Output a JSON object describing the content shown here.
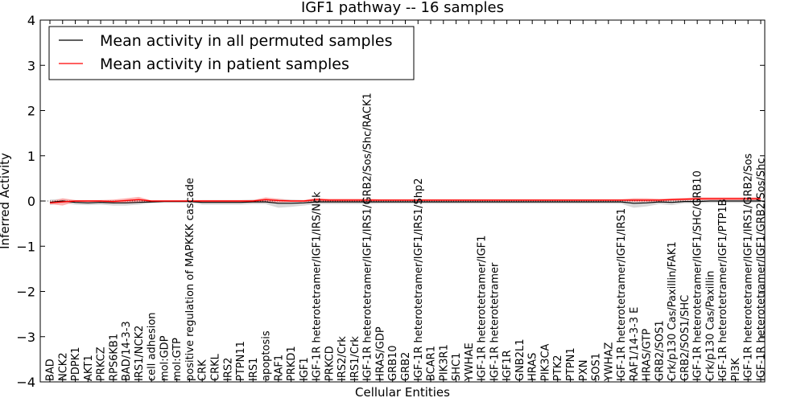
{
  "chart_data": {
    "type": "line",
    "title": "IGF1 pathway -- 16 samples",
    "xlabel": "Cellular Entities",
    "ylabel": "Inferred Activity",
    "ylim": [
      -4,
      4
    ],
    "yticks": [
      -4,
      -3,
      -2,
      -1,
      0,
      1,
      2,
      3,
      4
    ],
    "ytick_labels": [
      "−4",
      "−3",
      "−2",
      "−1",
      "0",
      "1",
      "2",
      "3",
      "4"
    ],
    "legend_position": "top-left",
    "colors": {
      "permuted": "#000000",
      "patient": "#ff0000",
      "permuted_band": "#c8c8c8",
      "patient_band": "#ff9a9a",
      "zero_line": "#555555"
    },
    "categories": [
      "BAD",
      "NCK2",
      "PDPK1",
      "AKT1",
      "PRKCZ",
      "RPS6KB1",
      "BAD/14-3-3",
      "IRS1/NCK2",
      "cell adhesion",
      "mol:GDP",
      "mol:GTP",
      "positive regulation of MAPKKK cascade",
      "CRK",
      "CRKL",
      "IRS2",
      "PTPN11",
      "IRS1",
      "apoptosis",
      "RAF1",
      "PRKD1",
      "IGF1",
      "IGF-1R heterotetramer/IGF1/IRS/Nck",
      "PRKCD",
      "IRS2/Crk",
      "IRS1/Crk",
      "IGF-1R heterotetramer/IGF1/IRS1/GRB2/Sos/Shc/RACK1",
      "HRAS/GDP",
      "GRB10",
      "GRB2",
      "IGF-1R heterotetramer/IGF1/IRS1/Shp2",
      "BCAR1",
      "PIK3R1",
      "SHC1",
      "YWHAE",
      "IGF-1R heterotetramer/IGF1",
      "IGF-1R heterotetramer",
      "IGF1R",
      "GNB2L1",
      "HRAS",
      "PIK3CA",
      "PTK2",
      "PTPN1",
      "PXN",
      "SOS1",
      "YWHAZ",
      "IGF-1R heterotetramer/IGF1/IRS1",
      "RAF1/14-3-3 E",
      "HRAS/GTP",
      "GRB2/SOS1",
      "Crk/p130 Cas/Paxillin/FAK1",
      "GRB2/SOS1/SHC",
      "IGF-1R heterotetramer/IGF1/SHC/GRB10",
      "Crk/p130 Cas/Paxillin",
      "IGF-1R heterotetramer/IGF1/PTP1B",
      "PI3K",
      "IGF-1R heterotetramer/IGF1/IRS1/GRB2/Sos",
      "IGF-1R heterotetramer/IGF1/GRB2/Sos/Shc"
    ],
    "series": [
      {
        "name": "Mean activity in all permuted samples",
        "values": [
          -0.03,
          0.0,
          -0.03,
          -0.04,
          -0.03,
          -0.04,
          -0.04,
          -0.03,
          -0.02,
          -0.01,
          -0.01,
          -0.01,
          -0.03,
          -0.03,
          -0.03,
          -0.03,
          -0.02,
          -0.02,
          -0.05,
          -0.05,
          -0.04,
          -0.02,
          -0.02,
          -0.02,
          -0.02,
          -0.02,
          -0.02,
          -0.02,
          -0.02,
          -0.02,
          -0.02,
          -0.02,
          -0.02,
          -0.02,
          -0.02,
          -0.02,
          -0.02,
          -0.02,
          -0.02,
          -0.02,
          -0.02,
          -0.02,
          -0.02,
          -0.02,
          -0.02,
          -0.02,
          -0.05,
          -0.04,
          -0.02,
          -0.03,
          -0.01,
          -0.01,
          0.0,
          0.0,
          0.0,
          0.0,
          0.0
        ],
        "spread": [
          0.06,
          0.05,
          0.05,
          0.05,
          0.05,
          0.06,
          0.06,
          0.05,
          0.03,
          0.02,
          0.02,
          0.02,
          0.05,
          0.05,
          0.05,
          0.05,
          0.05,
          0.05,
          0.1,
          0.08,
          0.06,
          0.05,
          0.05,
          0.05,
          0.05,
          0.05,
          0.04,
          0.04,
          0.04,
          0.04,
          0.04,
          0.04,
          0.04,
          0.04,
          0.04,
          0.04,
          0.04,
          0.04,
          0.04,
          0.04,
          0.04,
          0.04,
          0.04,
          0.04,
          0.04,
          0.04,
          0.1,
          0.08,
          0.05,
          0.06,
          0.04,
          0.04,
          0.04,
          0.04,
          0.04,
          0.04,
          0.04
        ]
      },
      {
        "name": "Mean activity in patient samples",
        "values": [
          -0.04,
          -0.02,
          0.0,
          0.0,
          0.0,
          -0.01,
          0.01,
          0.03,
          0.0,
          0.0,
          0.0,
          0.0,
          0.0,
          0.0,
          0.0,
          0.0,
          0.0,
          0.03,
          0.01,
          0.0,
          0.0,
          0.03,
          0.02,
          0.02,
          0.02,
          0.02,
          0.02,
          0.02,
          0.02,
          0.02,
          0.02,
          0.02,
          0.02,
          0.02,
          0.02,
          0.02,
          0.02,
          0.02,
          0.02,
          0.02,
          0.02,
          0.02,
          0.02,
          0.02,
          0.02,
          0.02,
          0.02,
          0.02,
          0.02,
          0.03,
          0.04,
          0.05,
          0.05,
          0.05,
          0.05,
          0.05,
          0.05
        ],
        "spread": [
          0.03,
          0.08,
          0.02,
          0.02,
          0.02,
          0.04,
          0.05,
          0.06,
          0.01,
          0.01,
          0.01,
          0.01,
          0.02,
          0.02,
          0.02,
          0.02,
          0.02,
          0.05,
          0.04,
          0.02,
          0.02,
          0.04,
          0.03,
          0.03,
          0.03,
          0.03,
          0.02,
          0.02,
          0.02,
          0.02,
          0.02,
          0.02,
          0.02,
          0.02,
          0.02,
          0.02,
          0.02,
          0.02,
          0.02,
          0.02,
          0.02,
          0.02,
          0.02,
          0.02,
          0.02,
          0.02,
          0.04,
          0.04,
          0.03,
          0.03,
          0.03,
          0.03,
          0.03,
          0.03,
          0.03,
          0.03,
          0.03
        ]
      }
    ]
  }
}
